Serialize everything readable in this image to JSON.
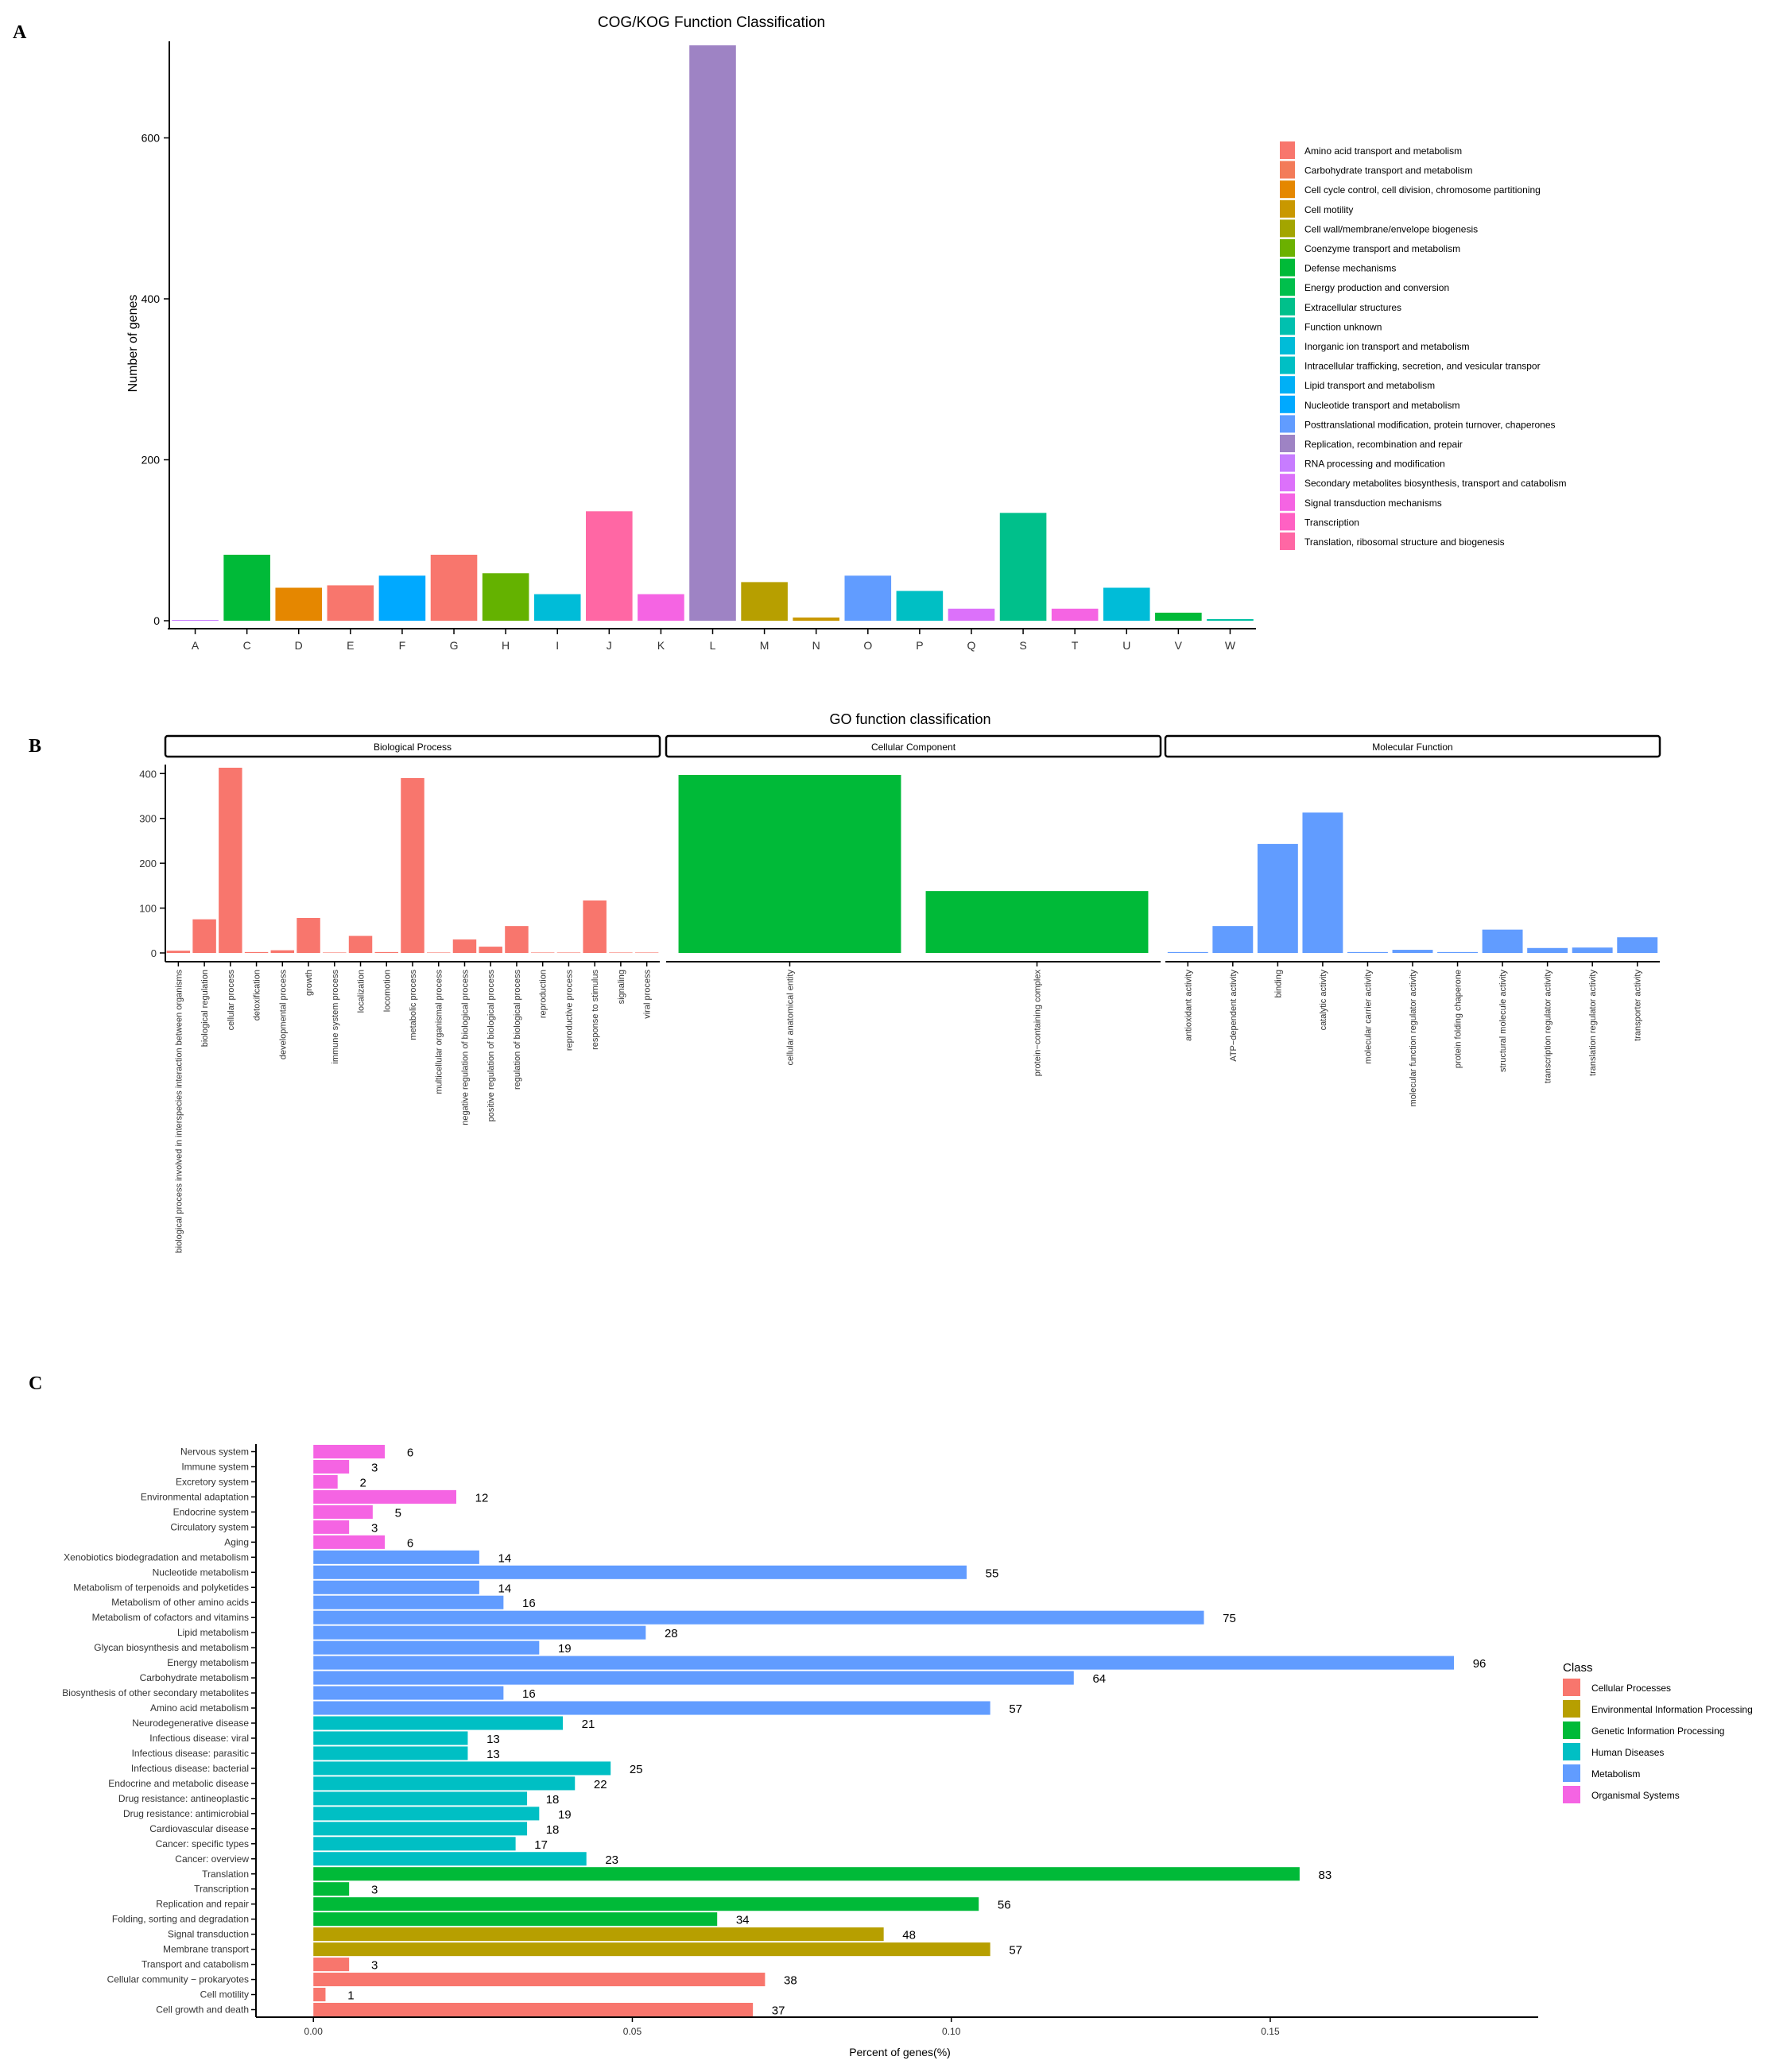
{
  "panel_labels": [
    "A",
    "B",
    "C"
  ],
  "colors": {
    "axis": "#000000",
    "strip_fill": "#ffffff",
    "go_bp": "#F8766D",
    "go_cc": "#00BA38",
    "go_mf": "#619CFF",
    "kegg": {
      "Cellular Processes": "#F8766D",
      "Environmental Information Processing": "#B79F00",
      "Genetic Information Processing": "#00BA38",
      "Human Diseases": "#00BFC4",
      "Metabolism": "#619CFF",
      "Organismal Systems": "#F564E3"
    }
  },
  "chart_data": [
    {
      "id": "cog",
      "type": "bar",
      "title": "COG/KOG Function Classification",
      "xlabel": "",
      "ylabel": "Number of genes",
      "ylim": [
        0,
        720
      ],
      "yticks": [
        0,
        200,
        400,
        600
      ],
      "grid": false,
      "legend_position": "right",
      "categories": [
        "A",
        "C",
        "D",
        "E",
        "F",
        "G",
        "H",
        "I",
        "J",
        "K",
        "L",
        "M",
        "N",
        "O",
        "P",
        "Q",
        "S",
        "T",
        "U",
        "V",
        "W"
      ],
      "values": [
        1,
        82,
        41,
        44,
        56,
        82,
        59,
        33,
        136,
        33,
        715,
        48,
        4,
        56,
        37,
        15,
        134,
        15,
        41,
        10,
        2
      ],
      "bar_colors": [
        "#C77CFF",
        "#00BA38",
        "#E58700",
        "#F8766D",
        "#00A9FF",
        "#F8766D",
        "#64B200",
        "#00BCD8",
        "#FF67A4",
        "#F564E3",
        "#9E83C4",
        "#B79F00",
        "#C99800",
        "#619CFF",
        "#00BFC4",
        "#DC71FA",
        "#00C08B",
        "#F564E3",
        "#00BCD8",
        "#00BA38",
        "#00C1A3"
      ],
      "legend": [
        {
          "label": "Amino acid transport and metabolism",
          "color": "#F8766D"
        },
        {
          "label": "Carbohydrate transport and metabolism",
          "color": "#F37B59"
        },
        {
          "label": "Cell cycle control, cell division, chromosome partitioning",
          "color": "#E58700"
        },
        {
          "label": "Cell motility",
          "color": "#C99800"
        },
        {
          "label": "Cell wall/membrane/envelope biogenesis",
          "color": "#A3A500"
        },
        {
          "label": "Coenzyme transport and metabolism",
          "color": "#6BB100"
        },
        {
          "label": "Defense mechanisms",
          "color": "#00BA38"
        },
        {
          "label": "Energy production and conversion",
          "color": "#00BF4C"
        },
        {
          "label": "Extracellular structures",
          "color": "#00C08B"
        },
        {
          "label": "Function unknown",
          "color": "#00C0AF"
        },
        {
          "label": "Inorganic ion transport and metabolism",
          "color": "#00BCD8"
        },
        {
          "label": "Intracellular trafficking, secretion, and vesicular transpor",
          "color": "#00BFC4"
        },
        {
          "label": "Lipid transport and metabolism",
          "color": "#00B0F6"
        },
        {
          "label": "Nucleotide transport and metabolism",
          "color": "#00A9FF"
        },
        {
          "label": "Posttranslational modification, protein turnover, chaperones",
          "color": "#619CFF"
        },
        {
          "label": "Replication, recombination and repair",
          "color": "#9E83C4"
        },
        {
          "label": "RNA processing and modification",
          "color": "#C77CFF"
        },
        {
          "label": "Secondary metabolites biosynthesis, transport and catabolism",
          "color": "#DC71FA"
        },
        {
          "label": "Signal transduction mechanisms",
          "color": "#F564E3"
        },
        {
          "label": "Transcription",
          "color": "#FF61C3"
        },
        {
          "label": "Translation, ribosomal structure and biogenesis",
          "color": "#FF67A4"
        }
      ]
    },
    {
      "id": "go",
      "type": "bar",
      "title": "GO function classification",
      "xlabel": "",
      "ylabel": "",
      "ylim": [
        0,
        420
      ],
      "yticks": [
        0,
        100,
        200,
        300,
        400
      ],
      "grid": false,
      "facets": [
        {
          "name": "Biological Process",
          "categories": [
            "biological process involved in interspecies interaction between organisms",
            "biological regulation",
            "cellular process",
            "detoxification",
            "developmental process",
            "growth",
            "immune system process",
            "localization",
            "locomotion",
            "metabolic process",
            "multicellular organismal process",
            "negative regulation of biological process",
            "positive regulation of biological process",
            "regulation of biological process",
            "reproduction",
            "reproductive process",
            "response to stimulus",
            "signaling",
            "viral process"
          ],
          "values": [
            5,
            75,
            413,
            2,
            6,
            78,
            1,
            38,
            2,
            390,
            1,
            30,
            14,
            60,
            1,
            1,
            117,
            1,
            1
          ]
        },
        {
          "name": "Cellular Component",
          "categories": [
            "cellular anatomical entity",
            "protein−containing complex"
          ],
          "values": [
            397,
            138
          ]
        },
        {
          "name": "Molecular Function",
          "categories": [
            "antioxidant activity",
            "ATP−dependent activity",
            "binding",
            "catalytic activity",
            "molecular carrier activity",
            "molecular function regulator activity",
            "protein folding chaperone",
            "structural molecule activity",
            "transcription regulator activity",
            "translation regulator activity",
            "transporter activity"
          ],
          "values": [
            2,
            60,
            243,
            313,
            2,
            7,
            2,
            52,
            11,
            12,
            35
          ]
        }
      ]
    },
    {
      "id": "kegg",
      "type": "bar",
      "orientation": "horizontal",
      "title": "",
      "xlabel": "Percent of genes(%)",
      "ylabel": "",
      "xlim": [
        -0.009,
        0.192
      ],
      "xticks": [
        0.0,
        0.05,
        0.1,
        0.15
      ],
      "xtick_labels": [
        "0.00",
        "0.05",
        "0.10",
        "0.15"
      ],
      "grid": false,
      "legend_title": "Class",
      "legend_position": "right",
      "classes": [
        "Cellular Processes",
        "Environmental Information Processing",
        "Genetic Information Processing",
        "Human Diseases",
        "Metabolism",
        "Organismal Systems"
      ],
      "categories": [
        "Nervous system",
        "Immune system",
        "Excretory system",
        "Environmental adaptation",
        "Endocrine system",
        "Circulatory system",
        "Aging",
        "Xenobiotics biodegradation and metabolism",
        "Nucleotide metabolism",
        "Metabolism of terpenoids and polyketides",
        "Metabolism of other amino acids",
        "Metabolism of cofactors and vitamins",
        "Lipid metabolism",
        "Glycan biosynthesis and metabolism",
        "Energy metabolism",
        "Carbohydrate metabolism",
        "Biosynthesis of other secondary metabolites",
        "Amino acid metabolism",
        "Neurodegenerative disease",
        "Infectious disease: viral",
        "Infectious disease: parasitic",
        "Infectious disease: bacterial",
        "Endocrine and metabolic disease",
        "Drug resistance: antineoplastic",
        "Drug resistance: antimicrobial",
        "Cardiovascular disease",
        "Cancer: specific types",
        "Cancer: overview",
        "Translation",
        "Transcription",
        "Replication and repair",
        "Folding, sorting and degradation",
        "Signal transduction",
        "Membrane transport",
        "Transport and catabolism",
        "Cellular community − prokaryotes",
        "Cell motility",
        "Cell growth and death"
      ],
      "class_of": [
        "Organismal Systems",
        "Organismal Systems",
        "Organismal Systems",
        "Organismal Systems",
        "Organismal Systems",
        "Organismal Systems",
        "Organismal Systems",
        "Metabolism",
        "Metabolism",
        "Metabolism",
        "Metabolism",
        "Metabolism",
        "Metabolism",
        "Metabolism",
        "Metabolism",
        "Metabolism",
        "Metabolism",
        "Metabolism",
        "Human Diseases",
        "Human Diseases",
        "Human Diseases",
        "Human Diseases",
        "Human Diseases",
        "Human Diseases",
        "Human Diseases",
        "Human Diseases",
        "Human Diseases",
        "Human Diseases",
        "Genetic Information Processing",
        "Genetic Information Processing",
        "Genetic Information Processing",
        "Genetic Information Processing",
        "Environmental Information Processing",
        "Environmental Information Processing",
        "Cellular Processes",
        "Cellular Processes",
        "Cellular Processes",
        "Cellular Processes"
      ],
      "values": [
        0.0112,
        0.0056,
        0.0038,
        0.0224,
        0.0093,
        0.0056,
        0.0112,
        0.026,
        0.1024,
        0.026,
        0.0298,
        0.1396,
        0.0521,
        0.0354,
        0.1788,
        0.1192,
        0.0298,
        0.1061,
        0.0391,
        0.0242,
        0.0242,
        0.0466,
        0.041,
        0.0335,
        0.0354,
        0.0335,
        0.0317,
        0.0428,
        0.1546,
        0.0056,
        0.1043,
        0.0633,
        0.0894,
        0.1061,
        0.0056,
        0.0708,
        0.0019,
        0.0689
      ],
      "labels": [
        "6",
        "3",
        "2",
        "12",
        "5",
        "3",
        "6",
        "14",
        "55",
        "14",
        "16",
        "75",
        "28",
        "19",
        "96",
        "64",
        "16",
        "57",
        "21",
        "13",
        "13",
        "25",
        "22",
        "18",
        "19",
        "18",
        "17",
        "23",
        "83",
        "3",
        "56",
        "34",
        "48",
        "57",
        "3",
        "38",
        "1",
        "37"
      ]
    }
  ]
}
